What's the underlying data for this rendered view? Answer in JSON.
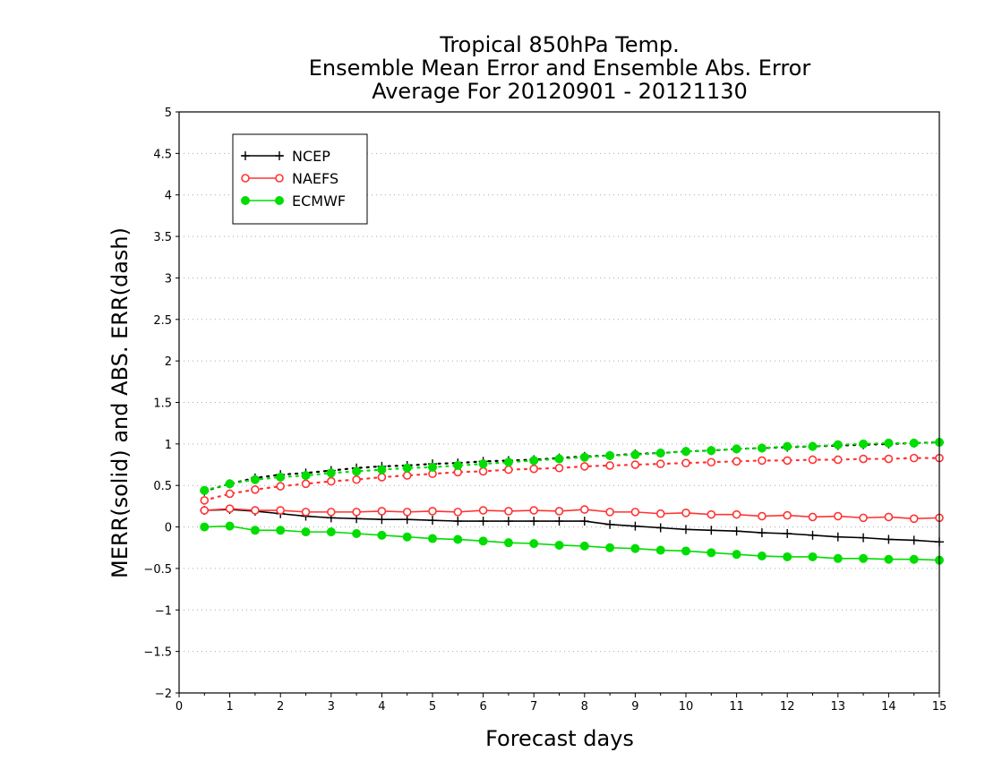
{
  "chart_data": {
    "type": "line",
    "title_lines": [
      "Tropical 850hPa Temp.",
      "Ensemble Mean Error and Ensemble Abs. Error",
      "Average For 20120901 - 20121130"
    ],
    "xlabel": "Forecast days",
    "ylabel": "MERR(solid) and ABS. ERR(dash)",
    "xlim": [
      0,
      15
    ],
    "ylim": [
      -2,
      5
    ],
    "x_ticks": [
      0,
      1,
      2,
      3,
      4,
      5,
      6,
      7,
      8,
      9,
      10,
      11,
      12,
      13,
      14,
      15
    ],
    "y_ticks": [
      -2,
      -1.5,
      -1,
      -0.5,
      0,
      0.5,
      1,
      1.5,
      2,
      2.5,
      3,
      3.5,
      4,
      4.5,
      5
    ],
    "grid": "horizontal dotted",
    "legend_position": "top-left",
    "x": [
      0.5,
      1,
      1.5,
      2,
      2.5,
      3,
      3.5,
      4,
      4.5,
      5,
      5.5,
      6,
      6.5,
      7,
      7.5,
      8,
      8.5,
      9,
      9.5,
      10,
      10.5,
      11,
      11.5,
      12,
      12.5,
      13,
      13.5,
      14,
      14.5,
      15
    ],
    "series": [
      {
        "name": "NCEP",
        "color": "#000000",
        "marker": "plus",
        "mean_error": [
          0.2,
          0.21,
          0.19,
          0.16,
          0.13,
          0.11,
          0.1,
          0.09,
          0.09,
          0.08,
          0.07,
          0.07,
          0.07,
          0.07,
          0.07,
          0.07,
          0.03,
          0.01,
          -0.01,
          -0.03,
          -0.04,
          -0.05,
          -0.07,
          -0.08,
          -0.1,
          -0.12,
          -0.13,
          -0.15,
          -0.16,
          -0.18
        ],
        "abs_error": [
          0.43,
          0.52,
          0.59,
          0.63,
          0.65,
          0.68,
          0.71,
          0.73,
          0.74,
          0.76,
          0.77,
          0.79,
          0.8,
          0.81,
          0.83,
          0.85,
          0.86,
          0.88,
          0.89,
          0.91,
          0.92,
          0.94,
          0.95,
          0.96,
          0.97,
          0.98,
          0.99,
          1.0,
          1.01,
          1.02
        ]
      },
      {
        "name": "NAEFS",
        "color": "#ff3333",
        "marker": "open-circle",
        "mean_error": [
          0.2,
          0.22,
          0.2,
          0.2,
          0.18,
          0.18,
          0.18,
          0.19,
          0.18,
          0.19,
          0.18,
          0.2,
          0.19,
          0.2,
          0.19,
          0.21,
          0.18,
          0.18,
          0.16,
          0.17,
          0.15,
          0.15,
          0.13,
          0.14,
          0.12,
          0.13,
          0.11,
          0.12,
          0.1,
          0.11
        ],
        "abs_error": [
          0.32,
          0.4,
          0.45,
          0.49,
          0.52,
          0.55,
          0.57,
          0.6,
          0.62,
          0.64,
          0.66,
          0.67,
          0.69,
          0.7,
          0.71,
          0.73,
          0.74,
          0.75,
          0.76,
          0.77,
          0.78,
          0.79,
          0.8,
          0.8,
          0.81,
          0.81,
          0.82,
          0.82,
          0.83,
          0.83
        ]
      },
      {
        "name": "ECMWF",
        "color": "#00dd00",
        "marker": "filled-circle",
        "mean_error": [
          0.0,
          0.01,
          -0.04,
          -0.04,
          -0.06,
          -0.06,
          -0.08,
          -0.1,
          -0.12,
          -0.14,
          -0.15,
          -0.17,
          -0.19,
          -0.2,
          -0.22,
          -0.23,
          -0.25,
          -0.26,
          -0.28,
          -0.29,
          -0.31,
          -0.33,
          -0.35,
          -0.36,
          -0.36,
          -0.38,
          -0.38,
          -0.39,
          -0.39,
          -0.4
        ],
        "abs_error": [
          0.44,
          0.52,
          0.57,
          0.6,
          0.62,
          0.65,
          0.67,
          0.69,
          0.71,
          0.72,
          0.74,
          0.76,
          0.78,
          0.8,
          0.82,
          0.84,
          0.86,
          0.87,
          0.89,
          0.91,
          0.92,
          0.94,
          0.95,
          0.97,
          0.97,
          0.99,
          1.0,
          1.01,
          1.01,
          1.02
        ]
      }
    ]
  }
}
